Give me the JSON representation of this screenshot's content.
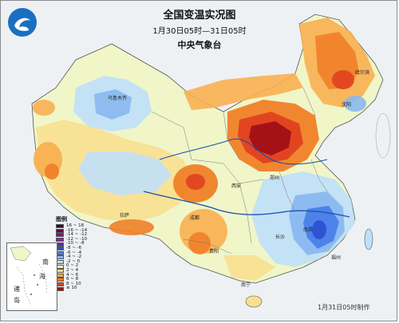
{
  "header": {
    "title": "全国变温实况图",
    "subtitle": "1月30日05时—31日05时",
    "agency": "中央气象台"
  },
  "legend": {
    "title": "图例",
    "items": [
      {
        "label": "16 ~ 18",
        "color": "#3b0a2a"
      },
      {
        "label": "-16 ~ -14",
        "color": "#5a1040"
      },
      {
        "label": "-14 ~ -12",
        "color": "#7a1a6a"
      },
      {
        "label": "-12 ~ -10",
        "color": "#8a2a9a"
      },
      {
        "label": "-10 ~ -8",
        "color": "#4a34b0"
      },
      {
        "label": "-8 ~ -6",
        "color": "#2a50d0"
      },
      {
        "label": "-6 ~ -4",
        "color": "#4a80e8"
      },
      {
        "label": "-4 ~ -2",
        "color": "#8ab8f0"
      },
      {
        "label": "-2 ~ 0",
        "color": "#c0e0f8"
      },
      {
        "label": "0 ~ 2",
        "color": "#f0f6c8"
      },
      {
        "label": "2 ~ 4",
        "color": "#f8e090"
      },
      {
        "label": "4 ~ 6",
        "color": "#f8b050"
      },
      {
        "label": "6 ~ 8",
        "color": "#f08028"
      },
      {
        "label": "8 ~ 10",
        "color": "#e04020"
      },
      {
        "label": "≥ 10",
        "color": "#a01018"
      }
    ]
  },
  "inset": {
    "labels": [
      "南",
      "海",
      "诸",
      "岛"
    ]
  },
  "cities": [
    {
      "name": "乌鲁木齐"
    },
    {
      "name": "拉萨"
    },
    {
      "name": "成都"
    },
    {
      "name": "贵阳"
    },
    {
      "name": "西安"
    },
    {
      "name": "郑州"
    },
    {
      "name": "南昌"
    },
    {
      "name": "长沙"
    },
    {
      "name": "福州"
    },
    {
      "name": "南宁"
    },
    {
      "name": "哈尔滨"
    },
    {
      "name": "沈阳"
    }
  ],
  "footer": {
    "date_note": "1月31日05时制作"
  },
  "colors": {
    "cold_strong": "#2a50d0",
    "warm_strong": "#a01018",
    "neutral": "#f0f6c8"
  }
}
